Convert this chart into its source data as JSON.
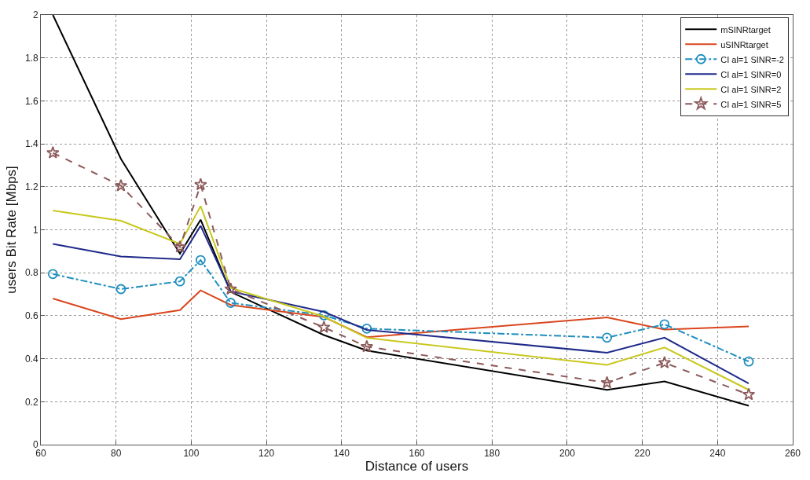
{
  "chart_data": {
    "type": "line",
    "xlabel": "Distance of users",
    "ylabel": "users Bit Rate [Mbps]",
    "x": [
      63.2,
      81.3,
      97,
      102.5,
      110.5,
      135.3,
      146.7,
      210.6,
      225.9,
      248.3
    ],
    "series": [
      {
        "name": "mSINRtarget",
        "color": "#000000",
        "marker": "none",
        "line_style": "solid",
        "values": [
          2.0,
          1.33,
          0.889,
          1.047,
          0.711,
          0.51,
          0.438,
          0.255,
          0.294,
          0.181
        ]
      },
      {
        "name": "uSINRtarget",
        "color": "#d9461e",
        "marker": "none",
        "line_style": "solid",
        "values": [
          0.68,
          0.584,
          0.626,
          0.718,
          0.65,
          0.594,
          0.5,
          0.592,
          0.536,
          0.55
        ]
      },
      {
        "name": "CI al=1 SINR=-2",
        "color": "#1f8fbf",
        "marker": "circle",
        "line_style": "dashdot",
        "values": [
          0.794,
          0.724,
          0.76,
          0.859,
          0.66,
          0.602,
          0.54,
          0.498,
          0.56,
          0.387
        ]
      },
      {
        "name": "CI al=1 SINR=0",
        "color": "#1f2a8a",
        "marker": "none",
        "line_style": "solid",
        "values": [
          0.934,
          0.876,
          0.863,
          1.019,
          0.713,
          0.618,
          0.534,
          0.428,
          0.498,
          0.285
        ]
      },
      {
        "name": "CI al=1 SINR=2",
        "color": "#c8c81e",
        "marker": "none",
        "line_style": "solid",
        "values": [
          1.09,
          1.042,
          0.934,
          1.11,
          0.73,
          0.596,
          0.497,
          0.371,
          0.452,
          0.255
        ]
      },
      {
        "name": "CI al=1 SINR=5",
        "color": "#8c5a5a",
        "marker": "star",
        "line_style": "dashed",
        "values": [
          1.358,
          1.205,
          0.92,
          1.21,
          0.724,
          0.546,
          0.456,
          0.288,
          0.381,
          0.233
        ]
      }
    ],
    "xlim": [
      60,
      260
    ],
    "xticks": [
      60,
      80,
      100,
      120,
      140,
      160,
      180,
      200,
      220,
      240,
      260
    ],
    "ylim": [
      0,
      2
    ],
    "yticks": [
      0,
      0.2,
      0.4,
      0.6,
      0.8,
      1,
      1.2,
      1.4,
      1.6,
      1.8,
      2
    ],
    "grid": true,
    "legend": "top right"
  }
}
